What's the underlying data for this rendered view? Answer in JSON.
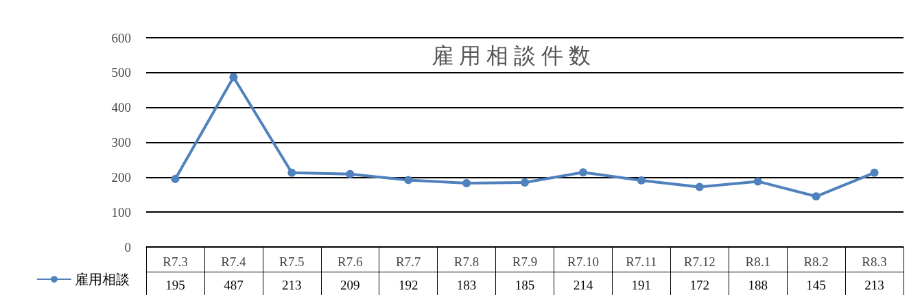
{
  "chart_data": {
    "type": "line",
    "title": "雇 用 相 談 件 数",
    "categories": [
      "R7.3",
      "R7.4",
      "R7.5",
      "R7.6",
      "R7.7",
      "R7.8",
      "R7.9",
      "R7.10",
      "R7.11",
      "R7.12",
      "R8.1",
      "R8.2",
      "R8.3"
    ],
    "series": [
      {
        "name": "雇用相談",
        "color": "#4f81bd",
        "values": [
          195,
          487,
          213,
          209,
          192,
          183,
          185,
          214,
          191,
          172,
          188,
          145,
          213
        ]
      }
    ],
    "ylim": [
      0,
      600
    ],
    "yticks": [
      0,
      100,
      200,
      300,
      400,
      500,
      600
    ],
    "grid": "y",
    "legend": "bottom left",
    "marker": "circle",
    "data_labels": true
  }
}
